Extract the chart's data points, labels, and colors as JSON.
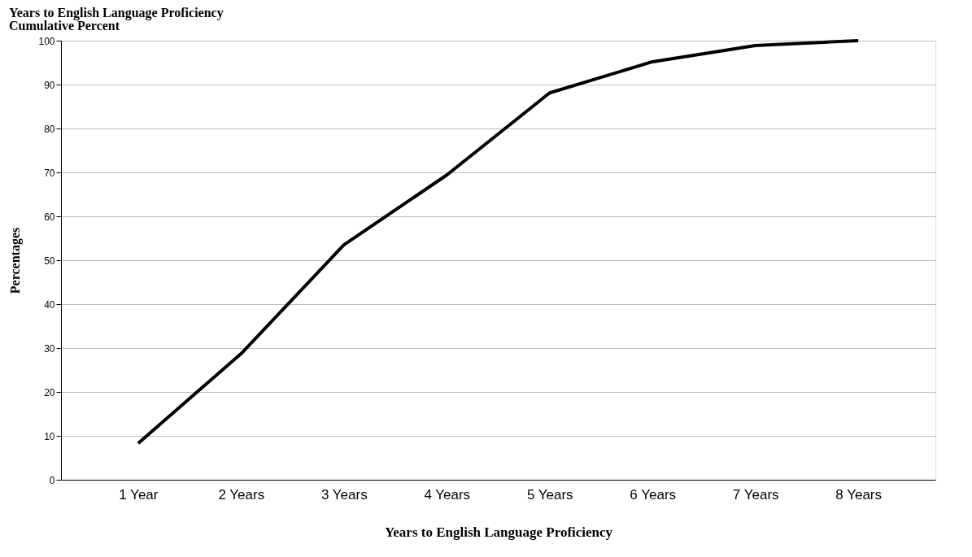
{
  "chart_data": {
    "type": "line",
    "title": "Years to English Language Proficiency",
    "subtitle": "Cumulative Percent",
    "xlabel": "Years to English Language Proficiency",
    "ylabel": "Percentages",
    "categories": [
      "1 Year",
      "2 Years",
      "3 Years",
      "4 Years",
      "5 Years",
      "6 Years",
      "7 Years",
      "8 Years"
    ],
    "series": [
      {
        "color": "#000000",
        "values": [
          8.3,
          28.7,
          53.5,
          69.4,
          88.1,
          95.2,
          98.9,
          100
        ]
      }
    ],
    "ylim": [
      0,
      100
    ],
    "yticks": [
      0,
      10,
      20,
      30,
      40,
      50,
      60,
      70,
      80,
      90,
      100
    ],
    "grid": "y",
    "marker": "none",
    "line_style": "solid",
    "legend": false
  }
}
